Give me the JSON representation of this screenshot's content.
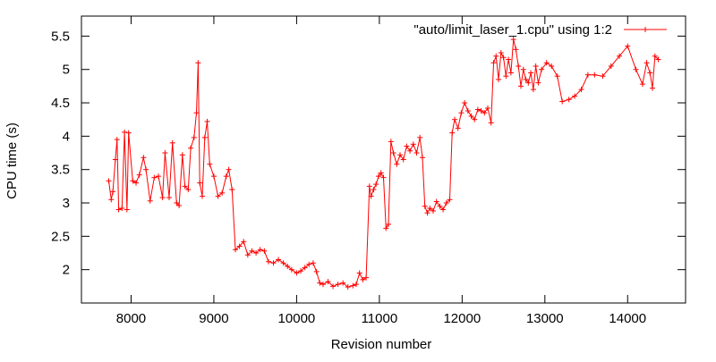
{
  "chart_data": {
    "type": "line",
    "title": "",
    "xlabel": "Revision number",
    "ylabel": "CPU time (s)",
    "xlim": [
      7400,
      14700
    ],
    "ylim": [
      1.5,
      5.8
    ],
    "x_ticks": [
      8000,
      9000,
      10000,
      11000,
      12000,
      13000,
      14000
    ],
    "y_ticks": [
      2,
      2.5,
      3,
      3.5,
      4,
      4.5,
      5,
      5.5
    ],
    "x_tick_labels": [
      "8000",
      "9000",
      "10000",
      "11000",
      "12000",
      "13000",
      "14000"
    ],
    "y_tick_labels": [
      "2",
      "2.5",
      "3",
      "3.5",
      "4",
      "4.5",
      "5",
      "5.5"
    ],
    "grid": false,
    "legend": {
      "position": "top-right"
    },
    "series": [
      {
        "name": "\"auto/limit_laser_1.cpu\" using 1:2",
        "color": "#ff0000",
        "marker": "plus",
        "points": [
          [
            7730,
            3.33
          ],
          [
            7760,
            3.05
          ],
          [
            7780,
            3.17
          ],
          [
            7810,
            3.65
          ],
          [
            7830,
            3.95
          ],
          [
            7850,
            2.9
          ],
          [
            7890,
            2.92
          ],
          [
            7920,
            4.06
          ],
          [
            7950,
            2.9
          ],
          [
            7970,
            4.05
          ],
          [
            8020,
            3.33
          ],
          [
            8060,
            3.3
          ],
          [
            8100,
            3.42
          ],
          [
            8150,
            3.68
          ],
          [
            8180,
            3.5
          ],
          [
            8230,
            3.03
          ],
          [
            8280,
            3.38
          ],
          [
            8330,
            3.4
          ],
          [
            8380,
            3.08
          ],
          [
            8410,
            3.75
          ],
          [
            8460,
            3.08
          ],
          [
            8500,
            3.9
          ],
          [
            8550,
            3.0
          ],
          [
            8580,
            2.96
          ],
          [
            8620,
            3.72
          ],
          [
            8650,
            3.25
          ],
          [
            8690,
            3.2
          ],
          [
            8720,
            3.82
          ],
          [
            8760,
            3.98
          ],
          [
            8790,
            4.35
          ],
          [
            8810,
            5.1
          ],
          [
            8830,
            3.3
          ],
          [
            8860,
            3.1
          ],
          [
            8890,
            3.98
          ],
          [
            8920,
            4.22
          ],
          [
            8950,
            3.58
          ],
          [
            9000,
            3.4
          ],
          [
            9050,
            3.1
          ],
          [
            9100,
            3.15
          ],
          [
            9150,
            3.4
          ],
          [
            9180,
            3.5
          ],
          [
            9220,
            3.2
          ],
          [
            9260,
            2.3
          ],
          [
            9310,
            2.35
          ],
          [
            9360,
            2.42
          ],
          [
            9410,
            2.22
          ],
          [
            9460,
            2.28
          ],
          [
            9510,
            2.25
          ],
          [
            9560,
            2.3
          ],
          [
            9610,
            2.28
          ],
          [
            9660,
            2.12
          ],
          [
            9720,
            2.1
          ],
          [
            9780,
            2.15
          ],
          [
            9840,
            2.1
          ],
          [
            9890,
            2.05
          ],
          [
            9940,
            2.0
          ],
          [
            10000,
            1.95
          ],
          [
            10050,
            1.98
          ],
          [
            10100,
            2.03
          ],
          [
            10150,
            2.08
          ],
          [
            10200,
            2.1
          ],
          [
            10240,
            1.97
          ],
          [
            10280,
            1.8
          ],
          [
            10320,
            1.78
          ],
          [
            10380,
            1.82
          ],
          [
            10440,
            1.75
          ],
          [
            10500,
            1.78
          ],
          [
            10560,
            1.8
          ],
          [
            10620,
            1.74
          ],
          [
            10680,
            1.76
          ],
          [
            10720,
            1.78
          ],
          [
            10760,
            1.95
          ],
          [
            10800,
            1.85
          ],
          [
            10840,
            1.88
          ],
          [
            10880,
            3.25
          ],
          [
            10900,
            3.1
          ],
          [
            10930,
            3.2
          ],
          [
            10960,
            3.28
          ],
          [
            10990,
            3.4
          ],
          [
            11020,
            3.45
          ],
          [
            11050,
            3.38
          ],
          [
            11080,
            2.62
          ],
          [
            11110,
            2.68
          ],
          [
            11140,
            3.92
          ],
          [
            11170,
            3.75
          ],
          [
            11210,
            3.58
          ],
          [
            11250,
            3.72
          ],
          [
            11290,
            3.65
          ],
          [
            11330,
            3.85
          ],
          [
            11370,
            3.78
          ],
          [
            11410,
            3.88
          ],
          [
            11450,
            3.75
          ],
          [
            11490,
            3.98
          ],
          [
            11520,
            3.68
          ],
          [
            11550,
            2.95
          ],
          [
            11580,
            2.85
          ],
          [
            11610,
            2.92
          ],
          [
            11650,
            2.88
          ],
          [
            11690,
            3.02
          ],
          [
            11730,
            2.95
          ],
          [
            11770,
            2.9
          ],
          [
            11810,
            3.0
          ],
          [
            11850,
            3.05
          ],
          [
            11880,
            4.05
          ],
          [
            11910,
            4.25
          ],
          [
            11950,
            4.12
          ],
          [
            11990,
            4.35
          ],
          [
            12030,
            4.5
          ],
          [
            12070,
            4.38
          ],
          [
            12110,
            4.3
          ],
          [
            12150,
            4.25
          ],
          [
            12190,
            4.4
          ],
          [
            12230,
            4.38
          ],
          [
            12270,
            4.35
          ],
          [
            12310,
            4.42
          ],
          [
            12350,
            4.2
          ],
          [
            12380,
            5.1
          ],
          [
            12410,
            5.2
          ],
          [
            12440,
            4.85
          ],
          [
            12470,
            5.25
          ],
          [
            12500,
            5.18
          ],
          [
            12530,
            4.9
          ],
          [
            12560,
            5.15
          ],
          [
            12590,
            4.95
          ],
          [
            12620,
            5.45
          ],
          [
            12650,
            5.3
          ],
          [
            12680,
            5.05
          ],
          [
            12710,
            4.75
          ],
          [
            12740,
            5.0
          ],
          [
            12770,
            4.85
          ],
          [
            12800,
            4.8
          ],
          [
            12830,
            4.95
          ],
          [
            12860,
            4.7
          ],
          [
            12890,
            5.05
          ],
          [
            12920,
            4.8
          ],
          [
            12960,
            5.0
          ],
          [
            13020,
            5.1
          ],
          [
            13080,
            5.05
          ],
          [
            13150,
            4.9
          ],
          [
            13210,
            4.52
          ],
          [
            13290,
            4.55
          ],
          [
            13360,
            4.6
          ],
          [
            13440,
            4.7
          ],
          [
            13520,
            4.92
          ],
          [
            13600,
            4.92
          ],
          [
            13700,
            4.9
          ],
          [
            13800,
            5.05
          ],
          [
            13900,
            5.2
          ],
          [
            14000,
            5.35
          ],
          [
            14100,
            5.0
          ],
          [
            14180,
            4.78
          ],
          [
            14230,
            5.1
          ],
          [
            14270,
            4.95
          ],
          [
            14300,
            4.72
          ],
          [
            14330,
            5.2
          ],
          [
            14370,
            5.15
          ]
        ]
      }
    ]
  }
}
